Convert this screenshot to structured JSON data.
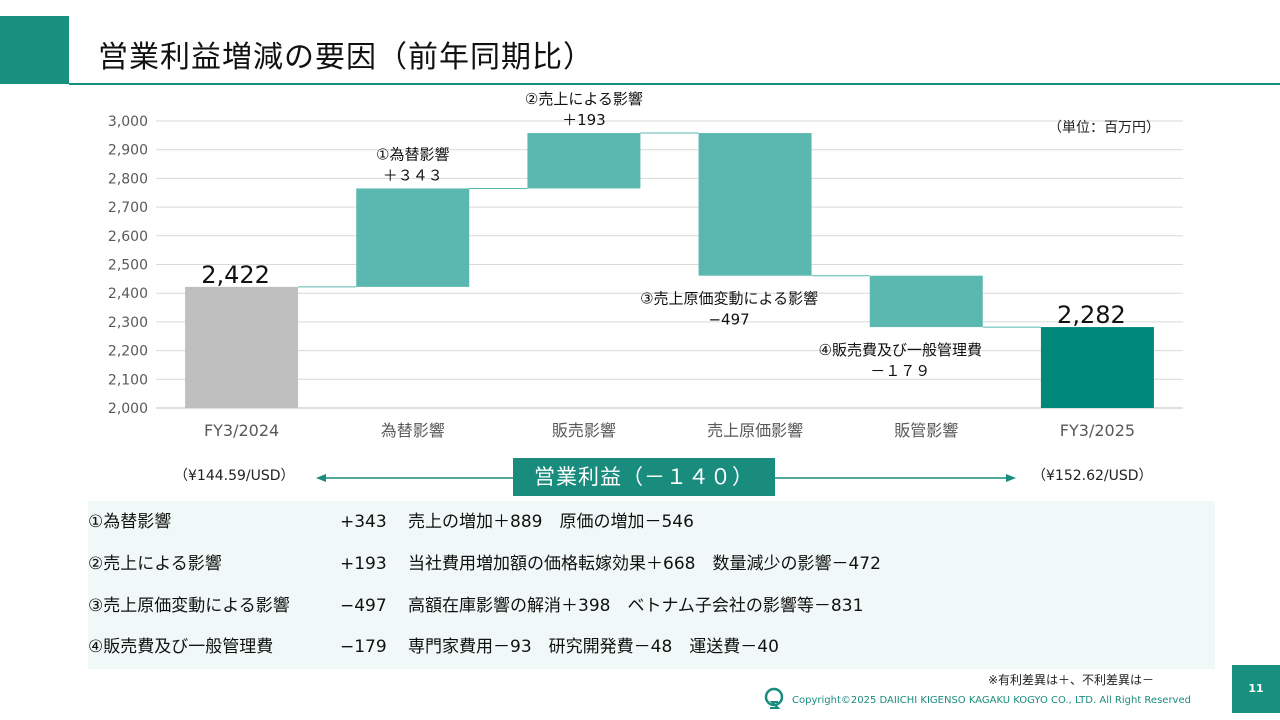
{
  "title": "営業利益増減の要因（前年同期比）",
  "unit_label": "（単位：百万円）",
  "chart_data": {
    "type": "bar",
    "subtype": "waterfall",
    "categories": [
      "FY3/2024",
      "為替影響",
      "販売影響",
      "売上原価影響",
      "販管影響",
      "FY3/2025"
    ],
    "steps": [
      {
        "category": "FY3/2024",
        "kind": "total",
        "value": 2422,
        "value_label": "2,422"
      },
      {
        "category": "為替影響",
        "kind": "delta",
        "value": 343,
        "label_lines": [
          "①為替影響",
          "＋３４３"
        ]
      },
      {
        "category": "販売影響",
        "kind": "delta",
        "value": 193,
        "label_lines": [
          "②売上による影響",
          "＋193"
        ]
      },
      {
        "category": "売上原価影響",
        "kind": "delta",
        "value": -497,
        "label_lines": [
          "③売上原価変動による影響",
          "−497"
        ]
      },
      {
        "category": "販管影響",
        "kind": "delta",
        "value": -179,
        "label_lines": [
          "④販売費及び一般管理費",
          "－１７９"
        ]
      },
      {
        "category": "FY3/2025",
        "kind": "total",
        "value": 2282,
        "value_label": "2,282"
      }
    ],
    "ylim": [
      2000,
      3000
    ],
    "yticks": [
      2000,
      2100,
      2200,
      2300,
      2400,
      2500,
      2600,
      2700,
      2800,
      2900,
      3000
    ],
    "ytick_labels": [
      "2,000",
      "2,100",
      "2,200",
      "2,300",
      "2,400",
      "2,500",
      "2,600",
      "2,700",
      "2,800",
      "2,900",
      "3,000"
    ],
    "grid": true,
    "colors": {
      "start": "#bfbfbf",
      "delta": "#5bb8b0",
      "end": "#00897b",
      "connector": "#5bb8b0",
      "grid": "#d9d9d9"
    }
  },
  "rates": {
    "left": "（¥144.59/USD）",
    "right": "（¥152.62/USD）"
  },
  "center_label": "営業利益（－１４０）",
  "breakdown": [
    {
      "name": "①為替影響",
      "value": "+343",
      "detail": "売上の増加＋889　原価の増加－546"
    },
    {
      "name": "②売上による影響",
      "value": "+193",
      "detail": "当社費用増加額の価格転嫁効果＋668　数量減少の影響－472"
    },
    {
      "name": "③売上原価変動による影響",
      "value": "−497",
      "detail": "高額在庫影響の解消＋398　ベトナム子会社の影響等－831"
    },
    {
      "name": "④販売費及び一般管理費",
      "value": "−179",
      "detail": "専門家費用－93　研究開発費－48　運送費－40"
    }
  ],
  "note": "※有利差異は＋、不利差異は－",
  "copyright": "Copyright©2025 DAIICHI KIGENSO KAGAKU KOGYO CO., LTD. All Right Reserved",
  "page_number": "11",
  "logo_icon": "company-logo-icon",
  "accent_color": "#17907f"
}
